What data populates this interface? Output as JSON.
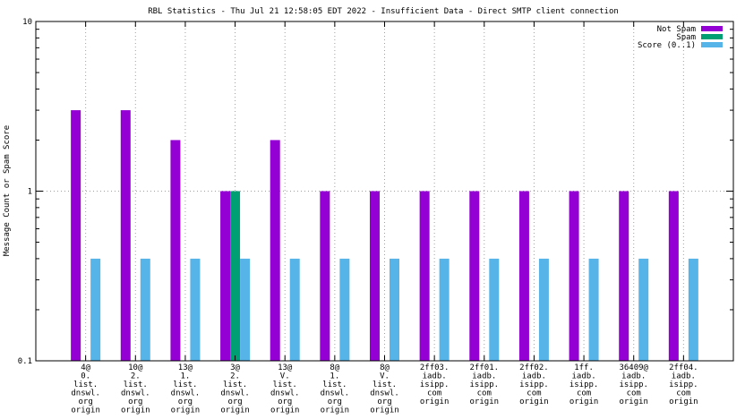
{
  "chart_data": {
    "type": "bar",
    "title": "RBL Statistics - Thu Jul 21 12:58:05 EDT 2022 - Insufficient Data - Direct SMTP client connection",
    "xlabel": "",
    "ylabel": "Message Count or Spam Score",
    "yscale": "log",
    "ylim": [
      0.1,
      10
    ],
    "yticks": [
      "0.1",
      "1",
      "10"
    ],
    "grid": true,
    "legend_position": "top-right",
    "categories": [
      [
        "4@",
        "0.",
        "list.",
        "dnswl.",
        "org",
        "origin"
      ],
      [
        "10@",
        "2.",
        "list.",
        "dnswl.",
        "org",
        "origin"
      ],
      [
        "13@",
        "1.",
        "list.",
        "dnswl.",
        "org",
        "origin"
      ],
      [
        "3@",
        "2.",
        "list.",
        "dnswl.",
        "org",
        "origin"
      ],
      [
        "13@",
        "V.",
        "list.",
        "dnswl.",
        "org",
        "origin"
      ],
      [
        "8@",
        "1.",
        "list.",
        "dnswl.",
        "org",
        "origin"
      ],
      [
        "8@",
        "V.",
        "list.",
        "dnswl.",
        "org",
        "origin"
      ],
      [
        "2ff03.",
        "iadb.",
        "isipp.",
        "com",
        "origin"
      ],
      [
        "2ff01.",
        "iadb.",
        "isipp.",
        "com",
        "origin"
      ],
      [
        "2ff02.",
        "iadb.",
        "isipp.",
        "com",
        "origin"
      ],
      [
        "1ff.",
        "iadb.",
        "isipp.",
        "com",
        "origin"
      ],
      [
        "36409@",
        "iadb.",
        "isipp.",
        "com",
        "origin"
      ],
      [
        "2ff04.",
        "iadb.",
        "isipp.",
        "com",
        "origin"
      ]
    ],
    "series": [
      {
        "name": "Not Spam",
        "color": "#9400d3",
        "values": [
          3,
          3,
          2,
          1,
          2,
          1,
          1,
          1,
          1,
          1,
          1,
          1,
          1
        ]
      },
      {
        "name": "Spam",
        "color": "#009e73",
        "values": [
          0,
          0,
          0,
          1,
          0,
          0,
          0,
          0,
          0,
          0,
          0,
          0,
          0
        ]
      },
      {
        "name": "Score (0..1)",
        "color": "#56b4e9",
        "values": [
          0.4,
          0.4,
          0.4,
          0.4,
          0.4,
          0.4,
          0.4,
          0.4,
          0.4,
          0.4,
          0.4,
          0.4,
          0.4
        ]
      }
    ]
  }
}
